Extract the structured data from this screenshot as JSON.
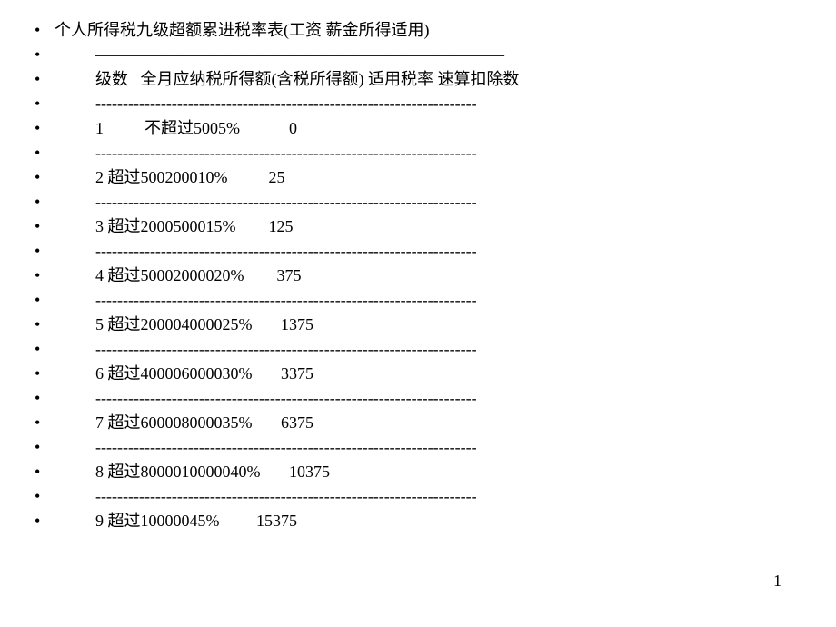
{
  "title": "个人所得税九级超额累进税率表(工资 薪金所得适用)",
  "separator_long": "—————————————————————————",
  "header_row": "级数   全月应纳税所得额(含税所得额) 适用税率 速算扣除数",
  "separator": "----------------------------------------------------------------------",
  "rows": {
    "r1": "1          不超过5005%            0",
    "r2": "2 超过500200010%          25",
    "r3": "3 超过2000500015%        125",
    "r4": "4 超过50002000020%        375",
    "r5": "5 超过200004000025%       1375",
    "r6": "6 超过400006000030%       3375",
    "r7": "7 超过600008000035%       6375",
    "r8": "8 超过8000010000040%       10375",
    "r9": "9 超过10000045%         15375"
  },
  "page_number": "1",
  "colors": {
    "background": "#ffffff",
    "text": "#000000"
  },
  "typography": {
    "font_family": "SimSun",
    "font_size_pt": 14,
    "line_height": 27
  },
  "structure": "bulleted-list-table"
}
